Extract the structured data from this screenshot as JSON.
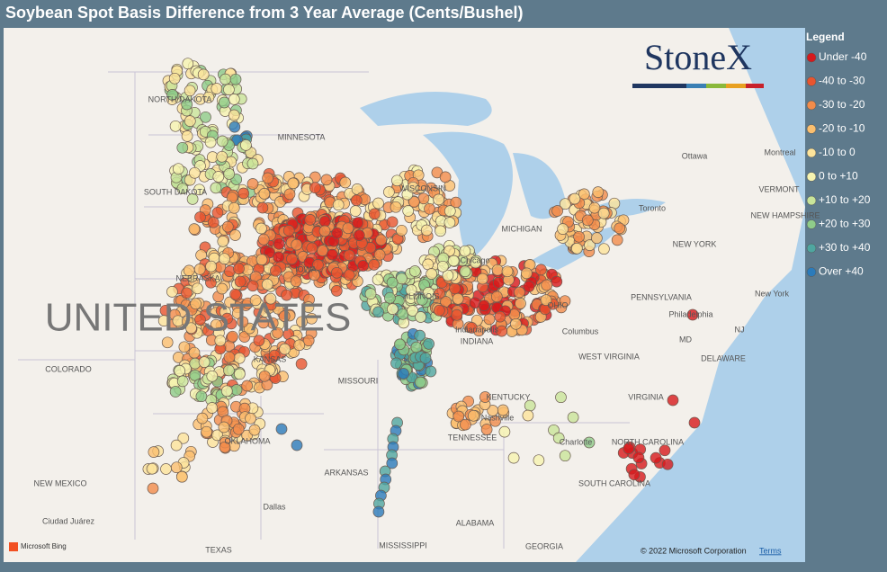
{
  "title": "Soybean Spot Basis Difference from 3 Year Average (Cents/Bushel)",
  "legend": {
    "title": "Legend",
    "items": [
      {
        "label": "Under -40",
        "color": "#d7191c"
      },
      {
        "label": "-40 to -30",
        "color": "#e8552f"
      },
      {
        "label": "-30 to -20",
        "color": "#f28c4b"
      },
      {
        "label": "-20 to -10",
        "color": "#fbbf6f"
      },
      {
        "label": "-10 to 0",
        "color": "#fde49b"
      },
      {
        "label": "0 to +10",
        "color": "#f6f4b0"
      },
      {
        "label": "+10 to +20",
        "color": "#c9e59a"
      },
      {
        "label": "+20 to +30",
        "color": "#8fcc8a"
      },
      {
        "label": "+30 to +40",
        "color": "#4fa6a0"
      },
      {
        "label": "Over +40",
        "color": "#2b7bba"
      }
    ]
  },
  "logo": "StoneX",
  "map_labels": [
    "NORTH DAKOTA",
    "MINNESOTA",
    "SOUTH DAKOTA",
    "WISCONSIN",
    "NEBRASKA",
    "IOWA",
    "UNITED STATES",
    "COLORADO",
    "KANSAS",
    "MISSOURI",
    "ILLINOIS",
    "INDIANA",
    "OHIO",
    "MICHIGAN",
    "Chicago",
    "Indianapolis",
    "Columbus",
    "KENTUCKY",
    "Nashville",
    "TENNESSEE",
    "OKLAHOMA",
    "ARKANSAS",
    "NEW MEXICO",
    "Dallas",
    "TEXAS",
    "Ciudad Juárez",
    "MISSISSIPPI",
    "ALABAMA",
    "GEORGIA",
    "SOUTH CAROLINA",
    "NORTH CAROLINA",
    "Charlotte",
    "VIRGINIA",
    "WEST VIRGINIA",
    "PENNSYLVANIA",
    "Philadelphia",
    "MD",
    "DELAWARE",
    "NJ",
    "NEW YORK",
    "New York",
    "Toronto",
    "Ottawa",
    "Montreal",
    "VERMONT",
    "NEW HAMPSHIRE"
  ],
  "attribution": {
    "bing": "Microsoft Bing",
    "copyright": "© 2022 Microsoft Corporation",
    "terms": "Terms"
  }
}
